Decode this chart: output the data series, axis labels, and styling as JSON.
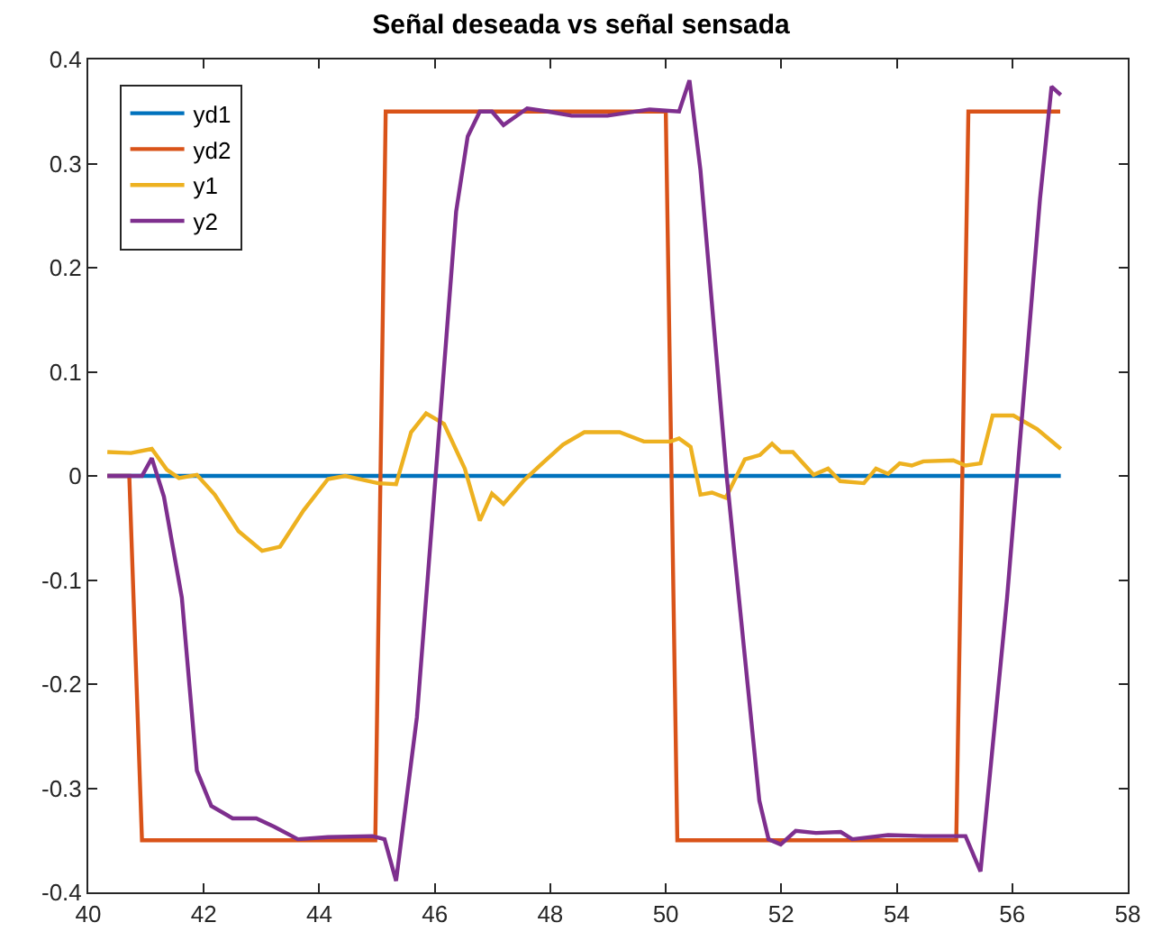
{
  "chart_data": {
    "type": "line",
    "title": "Señal deseada vs señal sensada",
    "xlim": [
      40,
      58
    ],
    "xticks": [
      40,
      42,
      44,
      46,
      48,
      50,
      52,
      54,
      56,
      58
    ],
    "ylim": [
      -0.4,
      0.4
    ],
    "yticks": [
      -0.4,
      -0.3,
      -0.2,
      -0.1,
      0,
      0.1,
      0.2,
      0.3,
      0.4
    ],
    "grid": false,
    "legend": "top left",
    "marker": "none",
    "line_style": "solid",
    "series": [
      {
        "name": "yd1",
        "color": "#0072bd",
        "x": [
          40.33,
          56.84
        ],
        "values": [
          0,
          0
        ]
      },
      {
        "name": "yd2",
        "color": "#d95319",
        "x": [
          40.33,
          40.71,
          40.93,
          44.97,
          45.15,
          50.0,
          50.2,
          55.03,
          55.24,
          56.83
        ],
        "values": [
          0,
          0,
          -0.35,
          -0.35,
          0.35,
          0.35,
          -0.35,
          -0.35,
          0.35,
          0.35
        ]
      },
      {
        "name": "y1",
        "color": "#edb120",
        "x": [
          40.33,
          40.74,
          41.1,
          41.36,
          41.57,
          41.88,
          42.19,
          42.6,
          43.01,
          43.32,
          43.73,
          44.15,
          44.45,
          45.02,
          45.33,
          45.59,
          45.85,
          46.16,
          46.52,
          46.78,
          46.99,
          47.19,
          47.55,
          47.86,
          48.22,
          48.59,
          49.2,
          49.62,
          50.08,
          50.23,
          50.43,
          50.6,
          50.8,
          51.04,
          51.37,
          51.63,
          51.84,
          51.99,
          52.2,
          52.56,
          52.81,
          53.02,
          53.43,
          53.64,
          53.85,
          54.05,
          54.26,
          54.46,
          54.98,
          55.19,
          55.45,
          55.66,
          56.02,
          56.43,
          56.84
        ],
        "values": [
          0.023,
          0.022,
          0.026,
          0.006,
          -0.002,
          0.001,
          -0.018,
          -0.053,
          -0.072,
          -0.068,
          -0.033,
          -0.003,
          0,
          -0.007,
          -0.008,
          0.042,
          0.06,
          0.05,
          0.007,
          -0.043,
          -0.017,
          -0.027,
          -0.004,
          0.012,
          0.03,
          0.042,
          0.042,
          0.033,
          0.033,
          0.036,
          0.028,
          -0.018,
          -0.016,
          -0.021,
          0.016,
          0.02,
          0.031,
          0.023,
          0.023,
          0.001,
          0.007,
          -0.005,
          -0.007,
          0.007,
          0.002,
          0.012,
          0.01,
          0.014,
          0.015,
          0.01,
          0.012,
          0.058,
          0.058,
          0.045,
          0.026
        ]
      },
      {
        "name": "y2",
        "color": "#7e2f8e",
        "x": [
          40.33,
          40.93,
          41.1,
          41.31,
          41.62,
          41.88,
          42.13,
          42.5,
          42.91,
          43.22,
          43.63,
          44.15,
          44.92,
          45.13,
          45.33,
          45.69,
          46.37,
          46.57,
          46.78,
          46.99,
          47.19,
          47.6,
          47.96,
          48.37,
          48.99,
          49.72,
          50.23,
          50.41,
          50.6,
          51.06,
          51.62,
          51.78,
          51.99,
          52.25,
          52.6,
          53.03,
          53.23,
          53.85,
          54.47,
          55.19,
          55.45,
          55.91,
          56.48,
          56.68,
          56.84
        ],
        "values": [
          0,
          0,
          0.017,
          -0.02,
          -0.117,
          -0.283,
          -0.317,
          -0.329,
          -0.329,
          -0.337,
          -0.349,
          -0.347,
          -0.346,
          -0.349,
          -0.389,
          -0.232,
          0.254,
          0.326,
          0.35,
          0.35,
          0.337,
          0.353,
          0.35,
          0.346,
          0.346,
          0.352,
          0.35,
          0.38,
          0.294,
          -0.003,
          -0.312,
          -0.349,
          -0.354,
          -0.341,
          -0.343,
          -0.342,
          -0.349,
          -0.345,
          -0.346,
          -0.346,
          -0.38,
          -0.117,
          0.266,
          0.374,
          0.366
        ]
      }
    ]
  }
}
